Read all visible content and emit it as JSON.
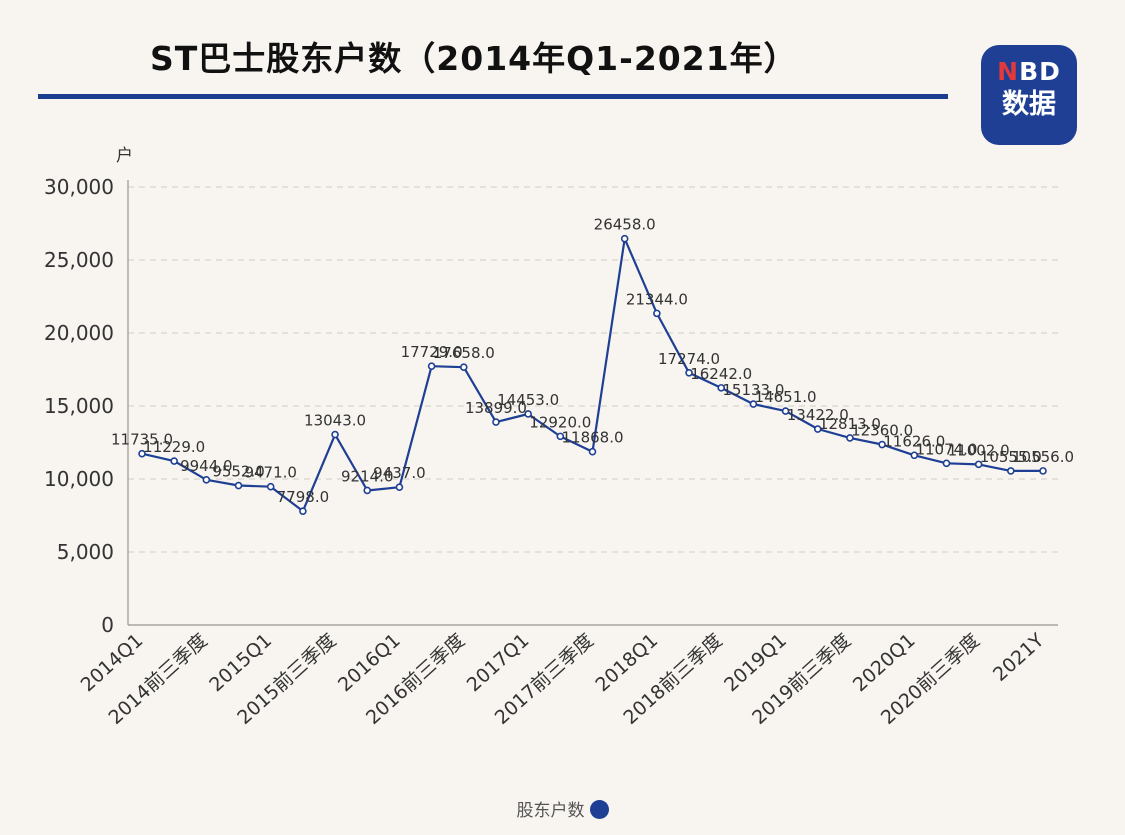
{
  "title": "ST巴士股东户数（2014年Q1-2021年）",
  "logo": {
    "top_n": "N",
    "top_rest": "BD",
    "bottom": "数据"
  },
  "colors": {
    "line": "#1e3f94",
    "title_rule": "#1a3d8f",
    "grid": "#cfcac3",
    "background": "#f8f5f1"
  },
  "chart_data": {
    "type": "line",
    "title": "ST巴士股东户数（2014年Q1-2021年）",
    "unit_label": "户",
    "ylim": [
      0,
      30000
    ],
    "yticks": [
      "0",
      "5,000",
      "10,000",
      "15,000",
      "20,000",
      "25,000",
      "30,000"
    ],
    "grid": "horizontal dashed",
    "legend_position": "bottom-center",
    "x": [
      "2014Q1",
      "",
      "2014前三季度",
      "",
      "2015Q1",
      "",
      "2015前三季度",
      "",
      "2016Q1",
      "",
      "2016前三季度",
      "",
      "2017Q1",
      "",
      "2017前三季度",
      "",
      "2018Q1",
      "",
      "2018前三季度",
      "",
      "2019Q1",
      "",
      "2019前三季度",
      "",
      "2020Q1",
      "",
      "2020前三季度",
      "",
      "2021Y"
    ],
    "series": [
      {
        "name": "股东户数",
        "values": [
          11735,
          11229,
          9944,
          9552,
          9471,
          7798,
          13043,
          9214,
          9437,
          17729,
          17658,
          13899,
          14453,
          12920,
          11868,
          26458,
          21344,
          17274,
          16242,
          15133,
          14651,
          13422,
          12813,
          12360,
          11626,
          11074,
          11002,
          10555,
          10556
        ],
        "labels": [
          "11735.0",
          "11229.0",
          "9944.0",
          "9552.0",
          "9471.0",
          "7798.0",
          "13043.0",
          "9214.0",
          "9437.0",
          "17729.0",
          "17658.0",
          "13899.0",
          "14453.0",
          "12920.0",
          "11868.0",
          "26458.0",
          "21344.0",
          "17274.0",
          "16242.0",
          "15133.0",
          "14651.0",
          "13422.0",
          "12813.0",
          "12360.0",
          "11626.0",
          "11074.0",
          "11002.0",
          "10555.0",
          "10556.0"
        ]
      }
    ]
  },
  "legend_label": "股东户数"
}
